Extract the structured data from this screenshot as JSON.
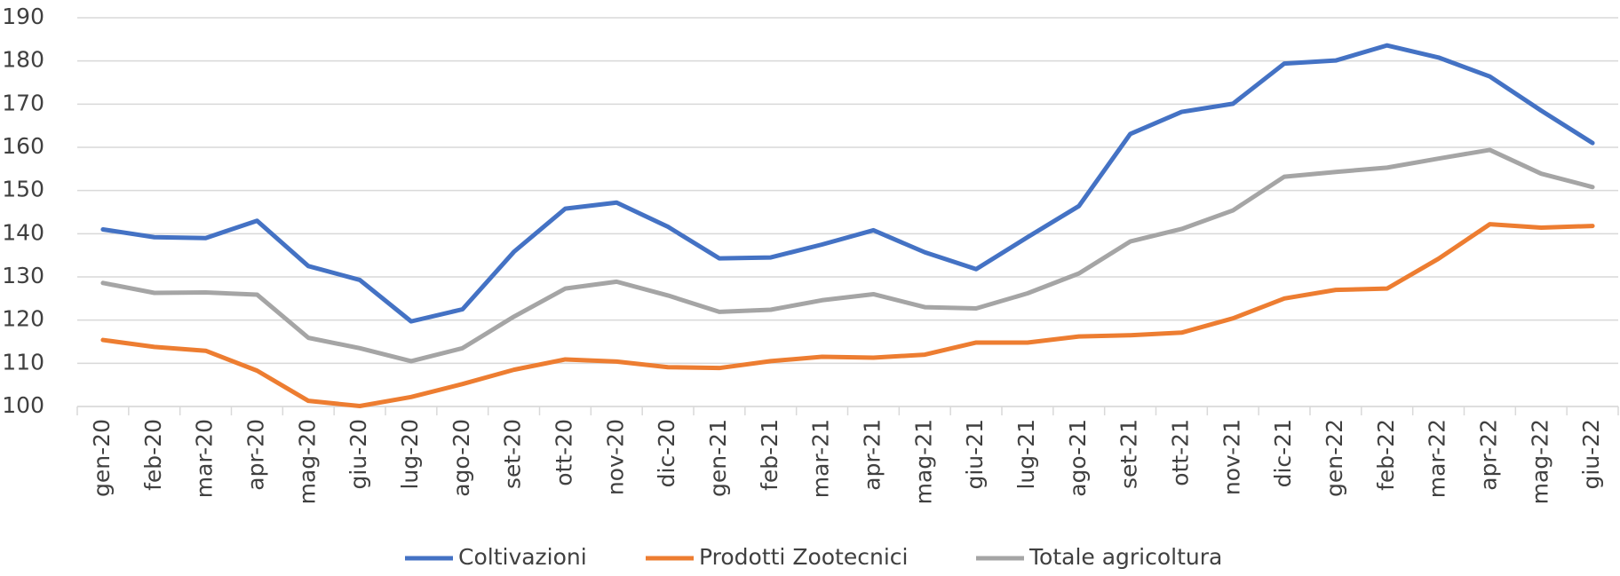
{
  "chart_data": {
    "type": "line",
    "categories": [
      "gen-20",
      "feb-20",
      "mar-20",
      "apr-20",
      "mag-20",
      "giu-20",
      "lug-20",
      "ago-20",
      "set-20",
      "ott-20",
      "nov-20",
      "dic-20",
      "gen-21",
      "feb-21",
      "mar-21",
      "apr-21",
      "mag-21",
      "giu-21",
      "lug-21",
      "ago-21",
      "set-21",
      "ott-21",
      "nov-21",
      "dic-21",
      "gen-22",
      "feb-22",
      "mar-22",
      "apr-22",
      "mag-22",
      "giu-22"
    ],
    "series": [
      {
        "name": "Coltivazioni",
        "color": "#4472c4",
        "values": [
          141,
          139.2,
          139,
          143,
          132.5,
          129.3,
          119.7,
          122.5,
          135.8,
          145.8,
          147.2,
          141.6,
          134.3,
          134.5,
          137.5,
          140.8,
          135.7,
          131.8,
          139.2,
          146.4,
          163.1,
          168.2,
          170.1,
          179.4,
          180.1,
          183.6,
          180.8,
          176.4,
          168.5,
          161
        ]
      },
      {
        "name": "Prodotti Zootecnici",
        "color": "#ed7d31",
        "values": [
          115.4,
          113.8,
          112.9,
          108.3,
          101.3,
          100.1,
          102.2,
          105.2,
          108.5,
          110.9,
          110.4,
          109.1,
          108.9,
          110.5,
          111.5,
          111.3,
          112,
          114.8,
          114.8,
          116.2,
          116.5,
          117.1,
          120.4,
          125,
          127,
          127.3,
          134.2,
          142.2,
          141.4,
          141.8
        ]
      },
      {
        "name": "Totale agricoltura",
        "color": "#a5a5a5",
        "values": [
          128.6,
          126.3,
          126.4,
          125.9,
          115.9,
          113.5,
          110.5,
          113.5,
          120.8,
          127.3,
          128.9,
          125.7,
          121.9,
          122.4,
          124.6,
          126,
          123,
          122.7,
          126.2,
          130.8,
          138.2,
          141.1,
          145.4,
          153.2,
          154.3,
          155.3,
          157.4,
          159.4,
          153.9,
          150.8
        ]
      }
    ],
    "ylim": [
      100,
      190
    ],
    "yticks": [
      100,
      110,
      120,
      130,
      140,
      150,
      160,
      170,
      180,
      190
    ],
    "grid": true,
    "legend": "bottom"
  }
}
